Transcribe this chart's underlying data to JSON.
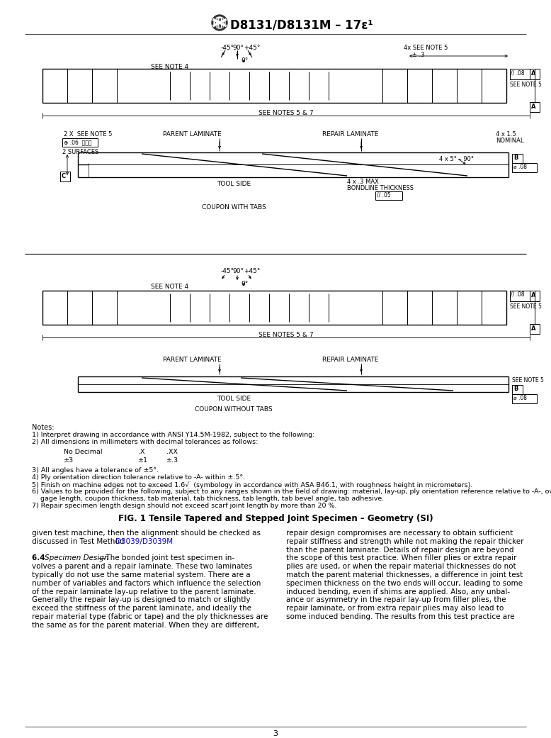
{
  "page_width": 7.78,
  "page_height": 10.41,
  "bg_color": "#ffffff",
  "header_title": "D8131/D8131M – 17ε¹",
  "fig_caption": "FIG. 1 Tensile Tapered and Stepped Joint Specimen – Geometry (SI)",
  "notes_title": "Notes:",
  "body_text_left": [
    "given test machine, then the alignment should be checked as",
    "discussed in Test Method D3039/D3039M.",
    "",
    "6.4 Specimen Design—The bonded joint test specimen in-",
    "volves a parent and a repair laminate. These two laminates",
    "typically do not use the same material system. There are a",
    "number of variables and factors which influence the selection",
    "of the repair laminate lay-up relative to the parent laminate.",
    "Generally the repair lay-up is designed to match or slightly",
    "exceed the stiffness of the parent laminate, and ideally the",
    "repair material type (fabric or tape) and the ply thicknesses are",
    "the same as for the parent material. When they are different,"
  ],
  "body_text_right": [
    "repair design compromises are necessary to obtain sufficient",
    "repair stiffness and strength while not making the repair thicker",
    "than the parent laminate. Details of repair design are beyond",
    "the scope of this test practice. When filler plies or extra repair",
    "plies are used, or when the repair material thicknesses do not",
    "match the parent material thicknesses, a difference in joint test",
    "specimen thickness on the two ends will occur, leading to some",
    "induced bending, even if shims are applied. Also, any unbal-",
    "ance or asymmetry in the repair lay-up from filler plies, the",
    "repair laminate, or from extra repair plies may also lead to",
    "some induced bending. The results from this test practice are"
  ],
  "page_number": "3",
  "line_color": "#000000",
  "text_color": "#000000"
}
